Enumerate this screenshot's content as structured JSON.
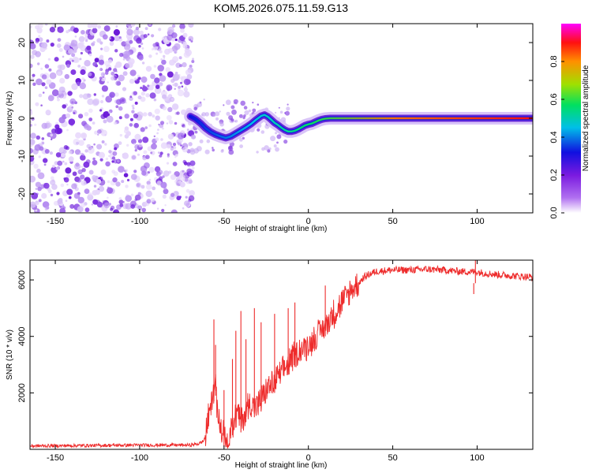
{
  "chart_data": [
    {
      "type": "heatmap",
      "title": "KOM5.2026.075.11.59.G13",
      "xlabel": "Height of straight line (km)",
      "ylabel": "Frequency (Hz)",
      "xlim": [
        -165,
        133
      ],
      "ylim": [
        -25,
        25
      ],
      "x_ticks": [
        -150,
        -100,
        -50,
        0,
        50,
        100
      ],
      "y_ticks": [
        20,
        10,
        0,
        -10,
        -20
      ],
      "noise_region_x": [
        -165,
        -70
      ],
      "signal_start_x": -70,
      "signal_track": {
        "x": [
          -70,
          -67,
          -64,
          -61,
          -58,
          -55,
          -52,
          -49,
          -46,
          -43,
          -40,
          -37,
          -34,
          -31,
          -28,
          -26,
          -24,
          -22,
          -20,
          -18,
          -16,
          -14,
          -12,
          -10,
          -8,
          -6,
          -4,
          -2,
          0,
          2,
          4,
          6,
          8,
          10,
          13,
          16,
          20,
          30,
          40,
          50,
          60,
          70,
          80,
          90,
          100,
          110,
          120,
          133
        ],
        "y": [
          0.5,
          -0.2,
          -1.3,
          -2.6,
          -3.6,
          -4.3,
          -4.8,
          -5.2,
          -4.8,
          -4.0,
          -3.2,
          -2.4,
          -1.5,
          -0.4,
          0.6,
          0.9,
          0.4,
          -0.4,
          -1.2,
          -1.8,
          -2.5,
          -3.1,
          -3.5,
          -3.5,
          -3.3,
          -2.9,
          -2.4,
          -1.9,
          -1.6,
          -1.4,
          -1.0,
          -0.6,
          -0.3,
          -0.1,
          0.0,
          0.0,
          0.0,
          0.0,
          0.0,
          0.0,
          0.0,
          0.0,
          0.0,
          0.0,
          0.0,
          0.0,
          0.0,
          0.0
        ]
      },
      "colorbar": {
        "label": "Normalized spectral amplitude",
        "range": [
          0.0,
          1.0
        ],
        "ticks": [
          "0.0",
          "0.2",
          "0.4",
          "0.6",
          "0.8"
        ],
        "colors": [
          "#ffffff",
          "#b070f0",
          "#7a1ae0",
          "#1010e0",
          "#00bfe8",
          "#00e060",
          "#a0e000",
          "#ff9000",
          "#ff1010",
          "#ff00ff"
        ]
      }
    },
    {
      "type": "line",
      "title": "",
      "xlabel": "Height of straight line (km)",
      "ylabel": "SNR (10 * v/v)",
      "xlim": [
        -165,
        133
      ],
      "ylim": [
        0,
        6700
      ],
      "x_ticks": [
        -150,
        -100,
        -50,
        0,
        50,
        100
      ],
      "y_ticks": [
        2000,
        4000,
        6000
      ],
      "color": "#ee2b2b",
      "series": [
        {
          "name": "SNR",
          "x": [
            -165,
            -100,
            -70,
            -65,
            -62,
            -60,
            -58,
            -56,
            -55,
            -54,
            -52,
            -50,
            -48,
            -45,
            -42,
            -40,
            -35,
            -30,
            -25,
            -20,
            -15,
            -10,
            -5,
            0,
            5,
            10,
            15,
            20,
            25,
            30,
            33,
            36,
            40,
            50,
            60,
            70,
            80,
            90,
            100,
            110,
            120,
            133
          ],
          "y": [
            120,
            150,
            150,
            200,
            300,
            900,
            1500,
            2100,
            2300,
            1400,
            700,
            500,
            400,
            900,
            1300,
            1000,
            1600,
            1500,
            2100,
            2400,
            2800,
            3200,
            3500,
            3700,
            4000,
            4400,
            4800,
            5200,
            5600,
            5900,
            6100,
            6200,
            6300,
            6350,
            6350,
            6380,
            6350,
            6300,
            6280,
            6200,
            6150,
            6100
          ]
        }
      ],
      "spikes": [
        {
          "x": -56,
          "y": 4600
        },
        {
          "x": -55,
          "y": 3700
        },
        {
          "x": -50,
          "y": 2100
        },
        {
          "x": -45,
          "y": 3200
        },
        {
          "x": -43,
          "y": 4200
        },
        {
          "x": -40,
          "y": 4900
        },
        {
          "x": -37,
          "y": 3900
        },
        {
          "x": -32,
          "y": 5000
        },
        {
          "x": -28,
          "y": 4500
        },
        {
          "x": -20,
          "y": 4800
        },
        {
          "x": -12,
          "y": 5000
        },
        {
          "x": -8,
          "y": 5200
        },
        {
          "x": 10,
          "y": 5800
        },
        {
          "x": 99,
          "y": 6700
        },
        {
          "x": 98,
          "y": 5500
        }
      ]
    }
  ]
}
